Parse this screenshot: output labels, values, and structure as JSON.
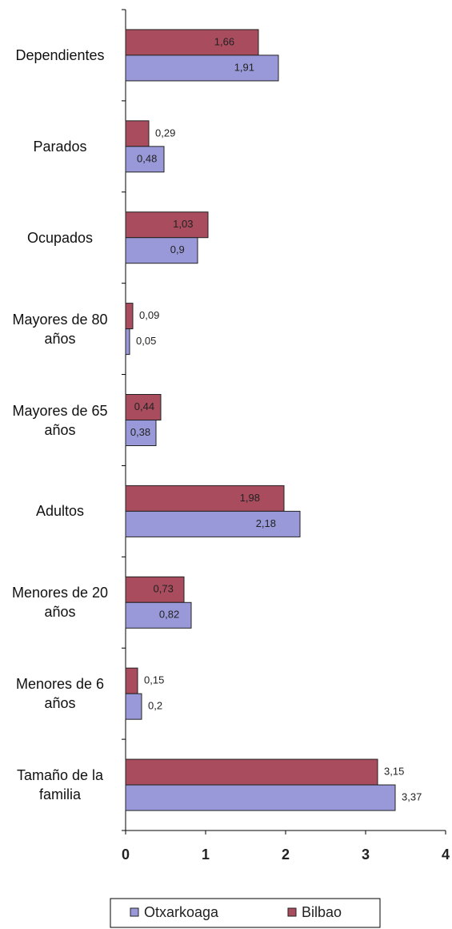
{
  "chart_data": {
    "type": "bar",
    "orientation": "horizontal",
    "categories": [
      "Dependientes",
      "Parados",
      "Ocupados",
      "Mayores de 80 años",
      "Mayores de 65 años",
      "Adultos",
      "Menores de 20 años",
      "Menores de 6 años",
      "Tamaño de la familia"
    ],
    "series": [
      {
        "name": "Otxarkoaga",
        "color": "#9999d9",
        "values": [
          1.91,
          0.48,
          0.9,
          0.05,
          0.38,
          2.18,
          0.82,
          0.2,
          3.37
        ],
        "value_labels": [
          "1,91",
          "0,48",
          "0,9",
          "0,05",
          "0,38",
          "2,18",
          "0,82",
          "0,2",
          "3,37"
        ]
      },
      {
        "name": "Bilbao",
        "color": "#a84c5e",
        "values": [
          1.66,
          0.29,
          1.03,
          0.09,
          0.44,
          1.98,
          0.73,
          0.15,
          3.15
        ],
        "value_labels": [
          "1,66",
          "0,29",
          "1,03",
          "0,09",
          "0,44",
          "1,98",
          "0,73",
          "0,15",
          "3,15"
        ]
      }
    ],
    "xlim": [
      0,
      4
    ],
    "xticks": [
      0,
      1,
      2,
      3,
      4
    ],
    "legend": "bottom"
  }
}
